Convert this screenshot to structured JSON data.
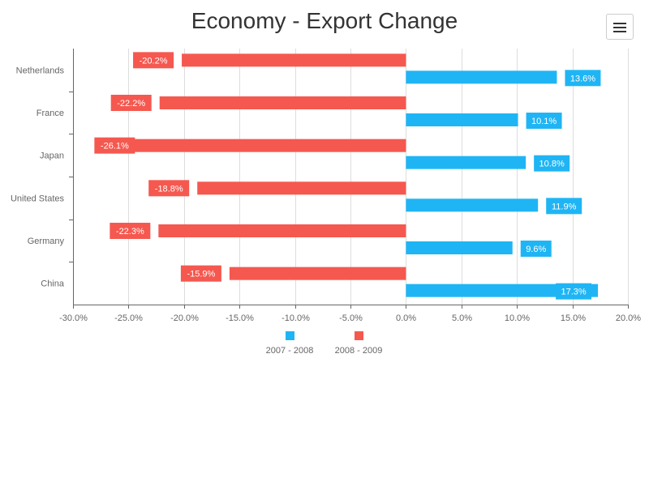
{
  "page": {
    "menu_icon": "hamburger-menu-icon"
  },
  "chart_data": {
    "type": "bar",
    "orientation": "horizontal",
    "title": "Economy - Export Change",
    "categories": [
      "Netherlands",
      "France",
      "Japan",
      "United States",
      "Germany",
      "China"
    ],
    "series": [
      {
        "name": "2007 - 2008",
        "color": "#1fb5f5",
        "values": [
          13.6,
          10.1,
          10.8,
          11.9,
          9.6,
          17.3
        ]
      },
      {
        "name": "2008 - 2009",
        "color": "#f5584f",
        "values": [
          -20.2,
          -22.2,
          -26.1,
          -18.8,
          -22.3,
          -15.9
        ]
      }
    ],
    "xlim": [
      -30,
      20
    ],
    "xticks": [
      -30,
      -25,
      -20,
      -15,
      -10,
      -5,
      0,
      5,
      10,
      15,
      20
    ],
    "xtick_labels": [
      "-30.0%",
      "-25.0%",
      "-20.0%",
      "-15.0%",
      "-10.0%",
      "-5.0%",
      "0.0%",
      "5.0%",
      "10.0%",
      "15.0%",
      "20.0%"
    ],
    "data_labels": [
      [
        "13.6%",
        "10.1%",
        "10.8%",
        "11.9%",
        "9.6%",
        "17.3%"
      ],
      [
        "-20.2%",
        "-22.2%",
        "-26.1%",
        "-18.8%",
        "-22.3%",
        "-15.9%"
      ]
    ],
    "grid": true,
    "legend": "bottom-center"
  }
}
